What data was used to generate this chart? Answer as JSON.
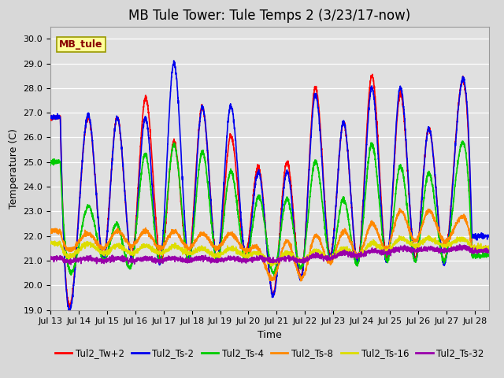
{
  "title": "MB Tule Tower: Tule Temps 2 (3/23/17-now)",
  "xlabel": "Time",
  "ylabel": "Temperature (C)",
  "ylim": [
    19.0,
    30.5
  ],
  "yticks": [
    19.0,
    20.0,
    21.0,
    22.0,
    23.0,
    24.0,
    25.0,
    26.0,
    27.0,
    28.0,
    29.0,
    30.0
  ],
  "xlim": [
    0,
    15.5
  ],
  "xtick_labels": [
    "Jul 13",
    "Jul 14",
    "Jul 15",
    "Jul 16",
    "Jul 17",
    "Jul 18",
    "Jul 19",
    "Jul 20",
    "Jul 21",
    "Jul 22",
    "Jul 23",
    "Jul 24",
    "Jul 25",
    "Jul 26",
    "Jul 27",
    "Jul 28"
  ],
  "xtick_positions": [
    0,
    1,
    2,
    3,
    4,
    5,
    6,
    7,
    8,
    9,
    10,
    11,
    12,
    13,
    14,
    15
  ],
  "bg_color": "#d8d8d8",
  "plot_bg_color": "#e0e0e0",
  "grid_color": "#ffffff",
  "station_label": "MB_tule",
  "station_label_bg": "#ffff99",
  "station_label_border": "#999900",
  "station_label_color": "#880000",
  "legend_labels": [
    "Tul2_Tw+2",
    "Tul2_Ts-2",
    "Tul2_Ts-4",
    "Tul2_Ts-8",
    "Tul2_Ts-16",
    "Tul2_Ts-32"
  ],
  "line_colors": [
    "#ff0000",
    "#0000ee",
    "#00cc00",
    "#ff8800",
    "#dddd00",
    "#9900aa"
  ],
  "line_width": 1.2,
  "title_fontsize": 12,
  "axis_label_fontsize": 9,
  "tick_fontsize": 8,
  "legend_fontsize": 8.5
}
